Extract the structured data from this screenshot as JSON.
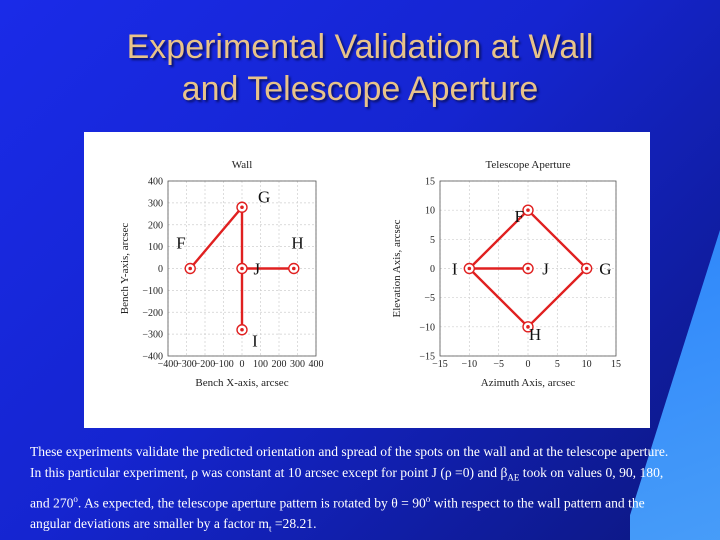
{
  "slide": {
    "title_line1": "Experimental Validation at Wall",
    "title_line2": "and Telescope Aperture",
    "title_color": "#e8c38a",
    "background_color": "#1a2be8"
  },
  "caption": {
    "s1": "These experiments validate the predicted orientation and spread of the spots on the wall and at the telescope aperture. In this particular experiment, ",
    "rho1": "ρ",
    "s2": " was constant at 10 arcsec except for point J (",
    "rho2": "ρ",
    "s3": " =0) and ",
    "beta": "β",
    "beta_sub": "AE",
    "s4": " took on values 0, 90, 180, and 270",
    "deg": "o",
    "s5": ". As expected, the telescope aperture pattern is rotated by ",
    "theta": "θ",
    "s6": " = 90",
    "deg2": "o",
    "s7": " with respect to the wall pattern and the angular deviations are smaller by a factor m",
    "m_sub": "t",
    "s8": " =28.21."
  },
  "chart_data": [
    {
      "type": "scatter",
      "title": "Wall",
      "xlabel": "Bench X-axis, arcsec",
      "ylabel": "Bench Y-axis, arcsec",
      "xlim": [
        -400,
        400
      ],
      "ylim": [
        -400,
        400
      ],
      "x_ticks": [
        -400,
        -300,
        -200,
        -100,
        0,
        100,
        200,
        300,
        400
      ],
      "x_tick_labels": [
        "−400",
        "−300",
        "−200",
        "−100",
        "0",
        "100",
        "200",
        "300",
        "400"
      ],
      "y_ticks": [
        400,
        300,
        200,
        100,
        0,
        -100,
        -200,
        -300,
        -400
      ],
      "y_tick_labels": [
        "400",
        "300",
        "200",
        "100",
        "0",
        "−100",
        "−200",
        "−300",
        "−400"
      ],
      "grid": true,
      "points": [
        {
          "label": "F",
          "x": -280,
          "y": 0
        },
        {
          "label": "G",
          "x": 0,
          "y": 280
        },
        {
          "label": "H",
          "x": 280,
          "y": 0
        },
        {
          "label": "I",
          "x": 0,
          "y": -280
        },
        {
          "label": "J",
          "x": 0,
          "y": 0
        }
      ],
      "label_positions": {
        "F": {
          "x": -330,
          "y": 120
        },
        "G": {
          "x": 120,
          "y": 330
        },
        "H": {
          "x": 300,
          "y": 120
        },
        "I": {
          "x": 70,
          "y": -330
        },
        "J": {
          "x": 80,
          "y": 0
        }
      },
      "paths": [
        [
          "F",
          "G",
          "J",
          "H"
        ],
        [
          "I",
          "J"
        ]
      ],
      "line_color": "#e02020"
    },
    {
      "type": "scatter",
      "title": "Telescope Aperture",
      "xlabel": "Azimuth Axis, arcsec",
      "ylabel": "Elevation Axis, arcsec",
      "xlim": [
        -15,
        15
      ],
      "ylim": [
        -15,
        15
      ],
      "x_ticks": [
        -15,
        -10,
        -5,
        0,
        5,
        10,
        15
      ],
      "x_tick_labels": [
        "−15",
        "−10",
        "−5",
        "0",
        "5",
        "10",
        "15"
      ],
      "y_ticks": [
        15,
        10,
        5,
        0,
        -5,
        -10,
        -15
      ],
      "y_tick_labels": [
        "15",
        "10",
        "5",
        "0",
        "−5",
        "−10",
        "−15"
      ],
      "grid": true,
      "points": [
        {
          "label": "F",
          "x": 0,
          "y": 10
        },
        {
          "label": "G",
          "x": 10,
          "y": 0
        },
        {
          "label": "H",
          "x": 0,
          "y": -10
        },
        {
          "label": "I",
          "x": -10,
          "y": 0
        },
        {
          "label": "J",
          "x": 0,
          "y": 0
        }
      ],
      "label_positions": {
        "F": {
          "x": -1.5,
          "y": 9
        },
        "G": {
          "x": 13.2,
          "y": 0
        },
        "H": {
          "x": 1.2,
          "y": -11.2
        },
        "I": {
          "x": -12.5,
          "y": 0
        },
        "J": {
          "x": 3,
          "y": 0
        }
      },
      "paths": [
        [
          "I",
          "F",
          "G",
          "H",
          "I",
          "J"
        ]
      ],
      "line_color": "#e02020"
    }
  ]
}
